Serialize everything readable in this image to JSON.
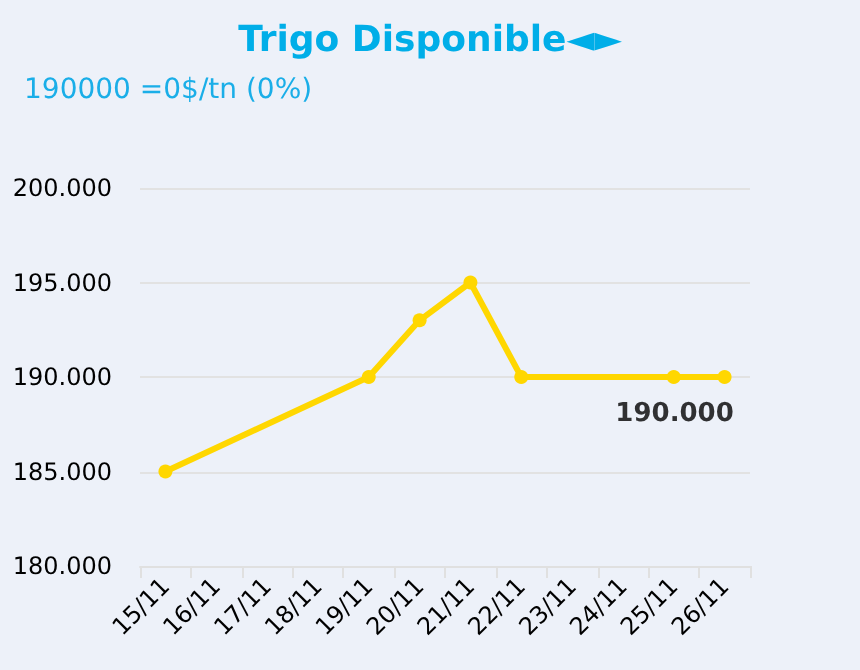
{
  "chart_data": {
    "type": "line",
    "title": "Trigo Disponible◄►",
    "subtitle": "190000 =0$/tn (0%)",
    "categories": [
      "15/11",
      "16/11",
      "17/11",
      "18/11",
      "19/11",
      "20/11",
      "21/11",
      "22/11",
      "23/11",
      "24/11",
      "25/11",
      "26/11"
    ],
    "series": [
      {
        "color": "#ffd700",
        "values": [
          185000,
          null,
          null,
          null,
          190000,
          193000,
          195000,
          190000,
          null,
          null,
          190000,
          190000
        ]
      }
    ],
    "ylim": [
      180000,
      200000
    ],
    "yticks": [
      {
        "value": 180000,
        "label": "180.000"
      },
      {
        "value": 185000,
        "label": "185.000"
      },
      {
        "value": 190000,
        "label": "190.000"
      },
      {
        "value": 195000,
        "label": "195.000"
      },
      {
        "value": 200000,
        "label": "200.000"
      }
    ],
    "annotations": [
      {
        "text": "190.000",
        "x": "26/11",
        "y": 190000
      }
    ],
    "grid": "y",
    "marker": "circle",
    "line_style": "solid"
  }
}
